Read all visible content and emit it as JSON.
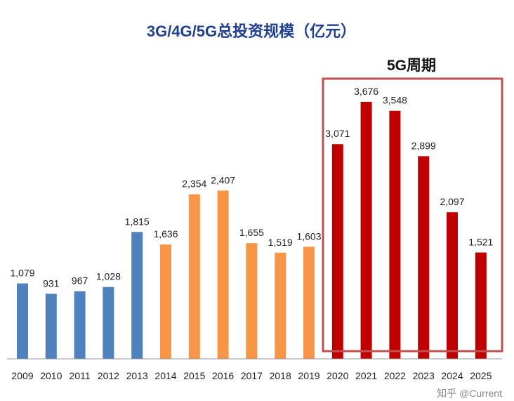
{
  "chart_data": {
    "type": "bar",
    "title": "3G/4G/5G总投资规模（亿元）",
    "xlabel": "",
    "ylabel": "",
    "ylim": [
      0,
      3800
    ],
    "grid": false,
    "categories": [
      "2009",
      "2010",
      "2011",
      "2012",
      "2013",
      "2014",
      "2015",
      "2016",
      "2017",
      "2018",
      "2019",
      "2020",
      "2021",
      "2022",
      "2023",
      "2024",
      "2025"
    ],
    "values": [
      1079,
      931,
      967,
      1028,
      1815,
      1636,
      2354,
      2407,
      1655,
      1519,
      1603,
      3071,
      3676,
      3548,
      2899,
      2097,
      1521
    ],
    "data_labels": [
      "1,079",
      "931",
      "967",
      "1,028",
      "1,815",
      "1,636",
      "2,354",
      "2,407",
      "1,655",
      "1,519",
      "1,603",
      "3,071",
      "3,676",
      "3,548",
      "2,899",
      "2,097",
      "1,521"
    ],
    "bar_colors": [
      "#4f81bd",
      "#4f81bd",
      "#4f81bd",
      "#4f81bd",
      "#4f81bd",
      "#f79646",
      "#f79646",
      "#f79646",
      "#f79646",
      "#f79646",
      "#f79646",
      "#c00000",
      "#c00000",
      "#c00000",
      "#c00000",
      "#c00000",
      "#c00000"
    ],
    "annotation": {
      "label": "5G周期",
      "range": [
        "2020",
        "2025"
      ],
      "box_color": "#c0504d"
    }
  },
  "watermark": "知乎 @Current"
}
